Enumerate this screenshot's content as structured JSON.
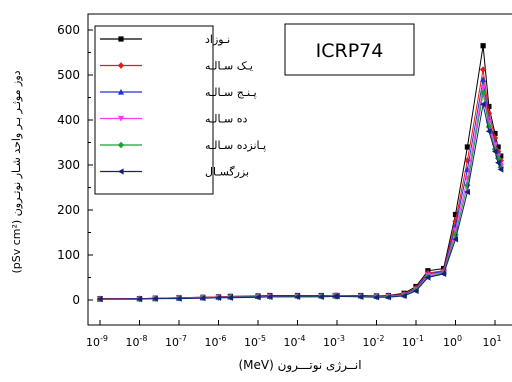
{
  "chart_data": {
    "type": "line",
    "annotation": "ICRP74",
    "xlabel": "انــرژی نوتـــرون (MeV)",
    "ylabel": "دوز موثـر بـر واحد شـار نوتـرون (pSv cm²)",
    "xscale": "log",
    "xlim": [
      1e-09,
      14
    ],
    "ylim": [
      -30,
      630
    ],
    "x_ticks": [
      {
        "base": "10",
        "exp": "-9",
        "value": 1e-09
      },
      {
        "base": "10",
        "exp": "-8",
        "value": 1e-08
      },
      {
        "base": "10",
        "exp": "-7",
        "value": 1e-07
      },
      {
        "base": "10",
        "exp": "-6",
        "value": 1e-06
      },
      {
        "base": "10",
        "exp": "-5",
        "value": 1e-05
      },
      {
        "base": "10",
        "exp": "-4",
        "value": 0.0001
      },
      {
        "base": "10",
        "exp": "-3",
        "value": 0.001
      },
      {
        "base": "10",
        "exp": "-2",
        "value": 0.01
      },
      {
        "base": "10",
        "exp": "-1",
        "value": 0.1
      },
      {
        "base": "10",
        "exp": "0",
        "value": 1
      },
      {
        "base": "10",
        "exp": "1",
        "value": 10
      }
    ],
    "y_ticks": [
      0,
      100,
      200,
      300,
      400,
      500,
      600
    ],
    "legend_position": "top-left",
    "x": [
      1e-09,
      1e-08,
      2.5e-08,
      1e-07,
      4e-07,
      1e-06,
      2e-06,
      1e-05,
      2e-05,
      0.0001,
      0.0004,
      0.0009,
      0.001,
      0.004,
      0.01,
      0.02,
      0.05,
      0.1,
      0.2,
      0.5,
      1,
      2,
      5,
      7,
      10,
      12,
      14
    ],
    "series": [
      {
        "name": "نـوزاد",
        "color": "#000000",
        "marker": "square",
        "values": [
          3,
          3,
          4,
          5,
          6,
          7,
          8,
          9,
          10,
          10,
          10,
          10,
          10,
          10,
          9,
          10,
          15,
          30,
          65,
          70,
          190,
          340,
          565,
          430,
          370,
          340,
          320
        ]
      },
      {
        "name": "یـک سـالـه",
        "color": "#e8191a",
        "marker": "diamond",
        "values": [
          3,
          3,
          4,
          5,
          6,
          7,
          8,
          8,
          9,
          9,
          9,
          10,
          10,
          9,
          8,
          9,
          13,
          27,
          60,
          65,
          175,
          310,
          512,
          415,
          360,
          330,
          310
        ]
      },
      {
        "name": "پـنـج سـالـه",
        "color": "#2433d9",
        "marker": "triangle",
        "values": [
          2,
          3,
          3,
          4,
          5,
          6,
          7,
          8,
          8,
          9,
          9,
          9,
          9,
          9,
          8,
          8,
          12,
          25,
          58,
          63,
          165,
          290,
          490,
          400,
          350,
          325,
          305
        ]
      },
      {
        "name": "ده سـالـه",
        "color": "#ff3af0",
        "marker": "triangle-down",
        "values": [
          2,
          2,
          3,
          4,
          5,
          6,
          6,
          7,
          8,
          8,
          8,
          9,
          9,
          8,
          7,
          8,
          11,
          23,
          55,
          62,
          155,
          270,
          472,
          395,
          345,
          320,
          300
        ]
      },
      {
        "name": "پـانزده سـالـه",
        "color": "#1fa02e",
        "marker": "diamond",
        "values": [
          2,
          2,
          3,
          4,
          5,
          5,
          6,
          7,
          7,
          8,
          8,
          8,
          8,
          8,
          7,
          7,
          10,
          22,
          52,
          60,
          145,
          255,
          460,
          385,
          335,
          315,
          295
        ]
      },
      {
        "name": "بزرگسـال",
        "color": "#1a1e7c",
        "marker": "triangle-left",
        "values": [
          2,
          2,
          3,
          3,
          4,
          5,
          5,
          6,
          7,
          7,
          7,
          8,
          8,
          7,
          6,
          6,
          9,
          20,
          50,
          58,
          135,
          240,
          435,
          375,
          330,
          305,
          290
        ]
      }
    ]
  }
}
